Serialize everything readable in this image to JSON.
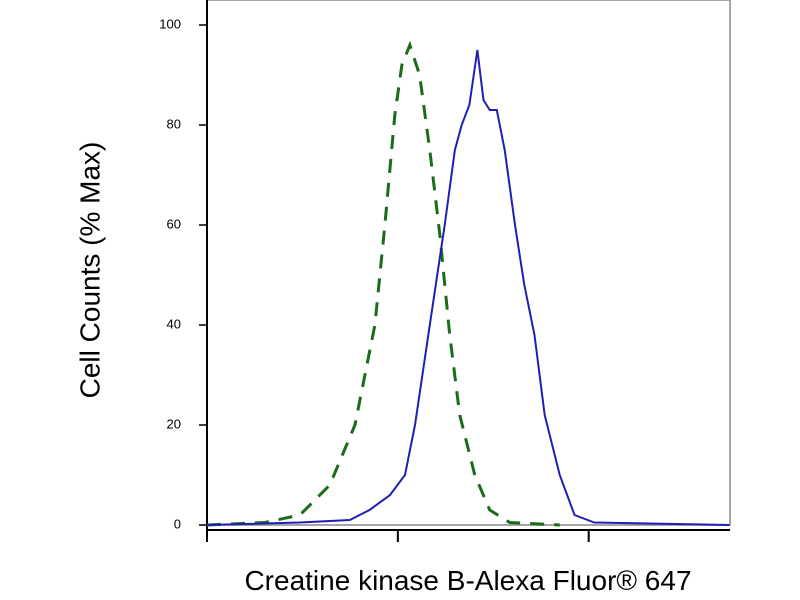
{
  "chart_data": {
    "type": "line",
    "xlabel": "Creatine kinase B-Alexa Fluor® 647",
    "ylabel": "Cell Counts (% Max)",
    "xscale": "log",
    "xlim": [
      1,
      550
    ],
    "xticks": [
      1,
      10,
      100
    ],
    "ylim": [
      0,
      105
    ],
    "yticks": [
      0,
      20,
      40,
      60,
      80,
      100
    ],
    "series": [
      {
        "color": "#1a6b1a",
        "dash": true,
        "x": [
          1,
          2.01,
          3.07,
          4.4,
          5.96,
          7.58,
          8.55,
          9.64,
          10.5,
          11.56,
          13.0,
          14.7,
          16.6,
          18.7,
          21.1,
          25.3,
          30.3,
          38.6,
          70.5
        ],
        "values": [
          0,
          0.5,
          2,
          8,
          20,
          40,
          60,
          82,
          92,
          96,
          90,
          75,
          58,
          38,
          22,
          10,
          3,
          0.5,
          0
        ]
      },
      {
        "color": "#1f1fb4",
        "dash": false,
        "x": [
          1,
          3.07,
          5.6,
          7.1,
          9.1,
          10.9,
          12.3,
          14.7,
          17.6,
          19.9,
          21.6,
          23.7,
          26.1,
          28.1,
          30.3,
          33.0,
          36.3,
          41.1,
          46.0,
          52.0,
          58.8,
          70.5,
          84.3,
          107,
          547
        ],
        "values": [
          0,
          0.5,
          1,
          3,
          6,
          10,
          20,
          40,
          60,
          75,
          80,
          84,
          95,
          85,
          83,
          83,
          75,
          60,
          48,
          38,
          22,
          10,
          2,
          0.5,
          0
        ]
      }
    ]
  }
}
